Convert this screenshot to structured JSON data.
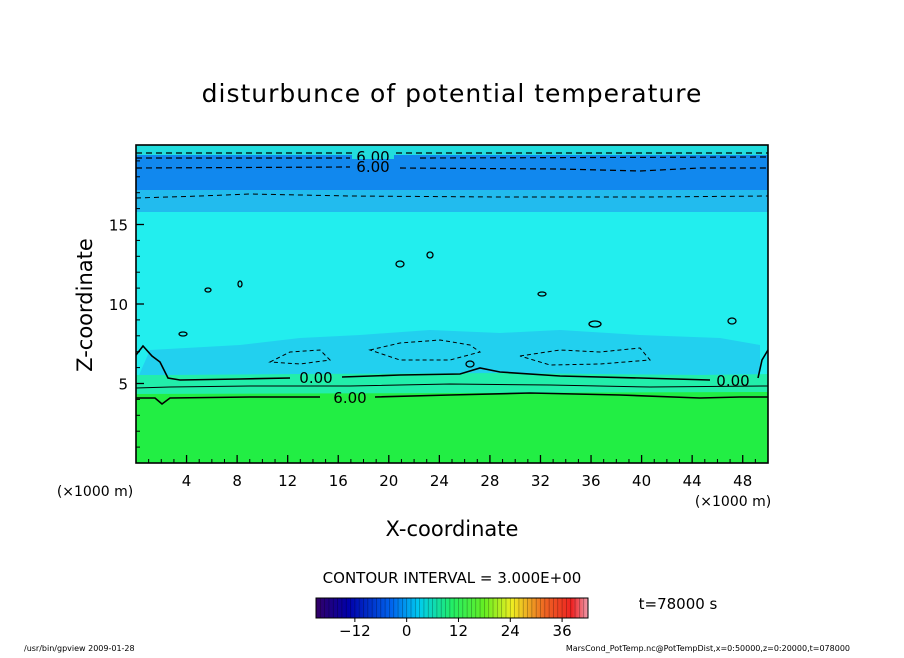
{
  "chart_data": {
    "type": "contour",
    "title": "disturbunce of potential temperature",
    "xlabel": "X-coordinate",
    "ylabel": "Z-coordinate",
    "x_unit": "(×1000 m)",
    "y_unit": "(×1000 m)",
    "xlim": [
      0,
      50
    ],
    "ylim": [
      0,
      20
    ],
    "x_ticks": [
      4,
      8,
      12,
      16,
      20,
      24,
      28,
      32,
      36,
      40,
      44,
      48
    ],
    "y_ticks": [
      5,
      10,
      15
    ],
    "contour_interval_text": "CONTOUR INTERVAL = 3.000E+00",
    "contour_labels": [
      "6.00",
      "6.00",
      "0.00",
      "0.00",
      "6.00"
    ],
    "colorbar": {
      "ticks": [
        -12,
        0,
        12,
        24,
        36
      ],
      "tick_labels": [
        "−12",
        "0",
        "12",
        "24",
        "36"
      ],
      "range": [
        -21,
        42
      ]
    },
    "time_label": "t=78000 s",
    "colors": {
      "surface_layer": "#22ee44",
      "mid_layer": "#22eeee",
      "upper_band": "#1188ee",
      "top_band": "#22dddd"
    }
  },
  "footer": {
    "left": "/usr/bin/gpview  2009-01-28",
    "right": "MarsCond_PotTemp.nc@PotTempDist,x=0:50000,z=0:20000,t=078000"
  }
}
